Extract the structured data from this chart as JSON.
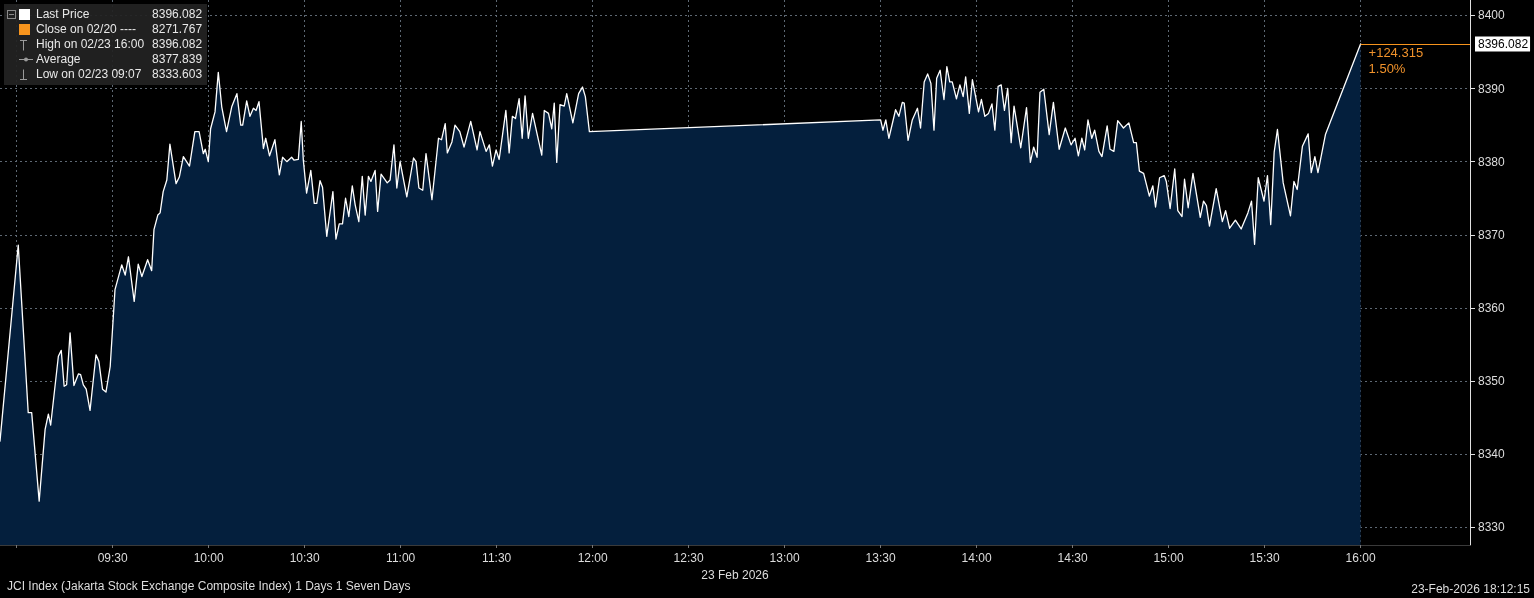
{
  "chart_data": {
    "type": "area",
    "title": "JCI Index (Jakarta Stock Exchange Composite Index) 1 Days 1 Seven Days",
    "xlabel": "23 Feb 2026",
    "annotations": [
      "8396.082",
      "Close on 02/20 ---- 8271.767",
      "High on 02/23 16:00 8396.082",
      "Average 8377.839",
      "Low on 02/23 09:07 8333.603",
      {
        "text": "+124.315",
        "x": 16,
        "y": 8396.1
      },
      {
        "text": "1.50%",
        "x": 16,
        "y": 8396.1
      },
      "23-Feb-2026 18:12:15"
    ],
    "x": [
      8.913,
      9.008,
      9.06,
      9.078,
      9.117,
      9.148,
      9.165,
      9.177,
      9.217,
      9.232,
      9.247,
      9.26,
      9.278,
      9.298,
      9.322,
      9.333,
      9.347,
      9.362,
      9.382,
      9.413,
      9.428,
      9.447,
      9.465,
      9.487,
      9.512,
      9.547,
      9.565,
      9.582,
      9.612,
      9.633,
      9.652,
      9.682,
      9.703,
      9.715,
      9.735,
      9.747,
      9.763,
      9.782,
      9.798,
      9.83,
      9.847,
      9.868,
      9.9,
      9.928,
      9.95,
      9.972,
      9.982,
      9.998,
      10.01,
      10.033,
      10.05,
      10.068,
      10.093,
      10.12,
      10.147,
      10.167,
      10.177,
      10.198,
      10.215,
      10.233,
      10.247,
      10.262,
      10.285,
      10.297,
      10.317,
      10.345,
      10.368,
      10.385,
      10.407,
      10.432,
      10.445,
      10.467,
      10.482,
      10.493,
      10.51,
      10.532,
      10.55,
      10.563,
      10.58,
      10.593,
      10.615,
      10.647,
      10.663,
      10.68,
      10.697,
      10.713,
      10.73,
      10.748,
      10.763,
      10.782,
      10.8,
      10.815,
      10.832,
      10.845,
      10.867,
      10.88,
      10.898,
      10.93,
      10.945,
      10.965,
      10.98,
      10.997,
      11.032,
      11.067,
      11.08,
      11.095,
      11.115,
      11.132,
      11.163,
      11.197,
      11.213,
      11.232,
      11.243,
      11.267,
      11.283,
      11.308,
      11.33,
      11.365,
      11.398,
      11.413,
      11.445,
      11.462,
      11.478,
      11.497,
      11.513,
      11.548,
      11.565,
      11.582,
      11.598,
      11.617,
      11.633,
      11.648,
      11.665,
      11.687,
      11.735,
      11.748,
      11.77,
      11.787,
      11.8,
      11.813,
      11.83,
      11.852,
      11.865,
      11.897,
      11.927,
      11.947,
      11.962,
      11.983,
      13.5,
      13.512,
      13.527,
      13.543,
      13.578,
      13.595,
      13.613,
      13.623,
      13.643,
      13.665,
      13.692,
      13.708,
      13.727,
      13.745,
      13.762,
      13.778,
      13.792,
      13.81,
      13.83,
      13.845,
      13.86,
      13.873,
      13.895,
      13.913,
      13.93,
      13.943,
      13.962,
      13.978,
      14.01,
      14.025,
      14.043,
      14.062,
      14.08,
      14.095,
      14.112,
      14.128,
      14.145,
      14.162,
      14.18,
      14.195,
      14.23,
      14.26,
      14.28,
      14.297,
      14.315,
      14.33,
      14.35,
      14.378,
      14.4,
      14.43,
      14.462,
      14.492,
      14.513,
      14.53,
      14.548,
      14.563,
      14.58,
      14.6,
      14.615,
      14.637,
      14.653,
      14.68,
      14.695,
      14.715,
      14.735,
      14.765,
      14.793,
      14.818,
      14.832,
      14.848,
      14.87,
      14.9,
      14.918,
      14.932,
      14.953,
      14.977,
      14.988,
      15.008,
      15.032,
      15.048,
      15.07,
      15.083,
      15.102,
      15.127,
      15.165,
      15.182,
      15.197,
      15.213,
      15.248,
      15.28,
      15.297,
      15.318,
      15.348,
      15.378,
      15.413,
      15.432,
      15.448,
      15.467,
      15.497,
      15.515,
      15.532,
      15.55,
      15.567,
      15.597,
      15.635,
      15.653,
      15.67,
      15.697,
      15.727,
      15.743,
      15.762,
      15.778,
      15.817,
      16.0
    ],
    "series": [
      {
        "name": "Last Price",
        "color": "#ffffff",
        "values": [
          8341.8,
          8368.6,
          8345.7,
          8345.7,
          8333.6,
          8343.4,
          8345.5,
          8344.0,
          8353.4,
          8354.2,
          8349.3,
          8349.5,
          8356.6,
          8349.4,
          8351.0,
          8350.9,
          8349.5,
          8348.9,
          8346.0,
          8353.6,
          8352.7,
          8348.9,
          8348.5,
          8352.0,
          8362.5,
          8365.9,
          8364.5,
          8367.0,
          8360.9,
          8366.0,
          8364.3,
          8366.6,
          8365.1,
          8370.7,
          8372.7,
          8373.0,
          8375.9,
          8377.5,
          8382.4,
          8377.0,
          8377.9,
          8380.7,
          8379.4,
          8384.1,
          8384.1,
          8381.1,
          8381.7,
          8380.0,
          8384.5,
          8386.8,
          8392.2,
          8387.5,
          8384.1,
          8387.5,
          8389.3,
          8385.0,
          8385.0,
          8388.3,
          8386.2,
          8387.3,
          8387.0,
          8388.2,
          8381.8,
          8383.2,
          8380.8,
          8383.0,
          8378.2,
          8380.6,
          8380.0,
          8380.6,
          8380.2,
          8380.3,
          8385.5,
          8380.2,
          8375.7,
          8378.8,
          8374.3,
          8374.3,
          8377.4,
          8376.5,
          8369.8,
          8375.9,
          8369.4,
          8371.5,
          8371.5,
          8375.0,
          8372.5,
          8376.7,
          8374.1,
          8371.8,
          8378.0,
          8372.7,
          8378.0,
          8377.3,
          8378.8,
          8373.2,
          8378.3,
          8377.1,
          8377.5,
          8382.3,
          8376.4,
          8380.0,
          8375.2,
          8380.5,
          8380.0,
          8376.4,
          8376.1,
          8381.1,
          8374.8,
          8383.2,
          8383.0,
          8385.2,
          8381.2,
          8382.7,
          8385.0,
          8384.1,
          8382.0,
          8385.5,
          8381.6,
          8384.1,
          8381.4,
          8382.3,
          8379.4,
          8381.6,
          8380.3,
          8387.0,
          8381.2,
          8386.2,
          8385.9,
          8388.6,
          8383.2,
          8389.0,
          8383.2,
          8386.6,
          8380.9,
          8387.0,
          8386.6,
          8384.5,
          8388.0,
          8379.9,
          8387.8,
          8387.6,
          8389.3,
          8385.3,
          8389.3,
          8390.2,
          8388.9,
          8384.1,
          8385.7,
          8384.3,
          8385.7,
          8383.2,
          8387.1,
          8386.2,
          8388.1,
          8388.0,
          8382.9,
          8385.7,
          8387.3,
          8384.6,
          8390.9,
          8392.0,
          8390.7,
          8384.3,
          8391.4,
          8392.5,
          8388.5,
          8393.0,
          8390.9,
          8390.9,
          8388.6,
          8390.5,
          8388.9,
          8391.6,
          8386.6,
          8391.2,
          8386.8,
          8388.5,
          8386.2,
          8386.6,
          8387.9,
          8384.3,
          8390.3,
          8390.5,
          8387.0,
          8390.0,
          8382.6,
          8387.6,
          8381.9,
          8387.4,
          8379.9,
          8382.0,
          8380.6,
          8389.5,
          8389.9,
          8383.7,
          8388.1,
          8381.7,
          8384.6,
          8382.3,
          8383.2,
          8380.8,
          8383.2,
          8381.6,
          8385.7,
          8383.2,
          8384.3,
          8381.4,
          8380.7,
          8384.9,
          8381.7,
          8381.4,
          8385.6,
          8384.6,
          8385.3,
          8382.6,
          8382.6,
          8378.7,
          8378.4,
          8375.3,
          8376.7,
          8373.8,
          8377.8,
          8378.1,
          8377.3,
          8373.6,
          8379.0,
          8373.3,
          8372.5,
          8377.6,
          8373.7,
          8378.4,
          8372.4,
          8374.6,
          8374.0,
          8371.2,
          8376.3,
          8371.8,
          8373.3,
          8370.9,
          8372.0,
          8370.8,
          8373.0,
          8374.6,
          8368.7,
          8377.8,
          8374.6,
          8378.1,
          8371.4,
          8381.3,
          8384.4,
          8377.1,
          8372.6,
          8377.3,
          8376.2,
          8382.1,
          8383.8,
          8378.5,
          8380.7,
          8378.5,
          8383.7,
          8396.1
        ]
      }
    ],
    "xlim": [
      8.913,
      16.57
    ],
    "ylim": [
      8327.6,
      8402.1
    ],
    "xticks": [
      {
        "value": 9,
        "label": null
      },
      {
        "value": 9.5,
        "label": "09:30"
      },
      {
        "value": 10,
        "label": "10:00"
      },
      {
        "value": 10.5,
        "label": "10:30"
      },
      {
        "value": 11,
        "label": "11:00"
      },
      {
        "value": 11.5,
        "label": "11:30"
      },
      {
        "value": 12,
        "label": "12:00"
      },
      {
        "value": 12.5,
        "label": "12:30"
      },
      {
        "value": 13,
        "label": "13:00"
      },
      {
        "value": 13.5,
        "label": "13:30"
      },
      {
        "value": 14,
        "label": "14:00"
      },
      {
        "value": 14.5,
        "label": "14:30"
      },
      {
        "value": 15,
        "label": "15:00"
      },
      {
        "value": 15.5,
        "label": "15:30"
      },
      {
        "value": 16,
        "label": "16:00"
      }
    ],
    "yticks": [
      8330,
      8340,
      8350,
      8360,
      8370,
      8380,
      8390,
      8400
    ],
    "grid": true,
    "legend": "top left",
    "ref_lines": [
      {
        "axis": "y",
        "value": 8396.082,
        "label": "8396.082",
        "color": "#f7941d"
      }
    ]
  }
}
